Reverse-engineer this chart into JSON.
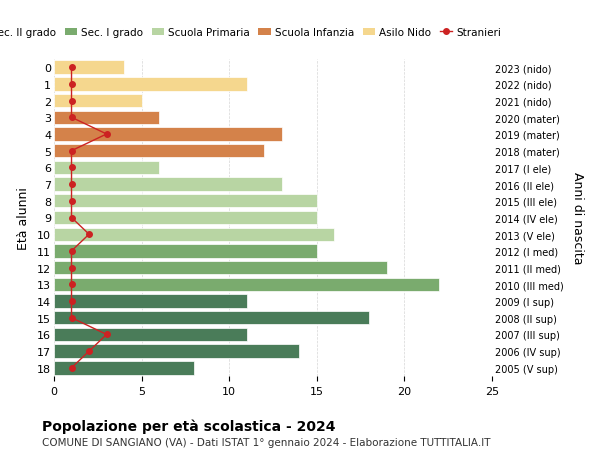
{
  "ages": [
    18,
    17,
    16,
    15,
    14,
    13,
    12,
    11,
    10,
    9,
    8,
    7,
    6,
    5,
    4,
    3,
    2,
    1,
    0
  ],
  "years": [
    "2005 (V sup)",
    "2006 (IV sup)",
    "2007 (III sup)",
    "2008 (II sup)",
    "2009 (I sup)",
    "2010 (III med)",
    "2011 (II med)",
    "2012 (I med)",
    "2013 (V ele)",
    "2014 (IV ele)",
    "2015 (III ele)",
    "2016 (II ele)",
    "2017 (I ele)",
    "2018 (mater)",
    "2019 (mater)",
    "2020 (mater)",
    "2021 (nido)",
    "2022 (nido)",
    "2023 (nido)"
  ],
  "values": [
    8,
    14,
    11,
    18,
    11,
    22,
    19,
    15,
    16,
    15,
    15,
    13,
    6,
    12,
    13,
    6,
    5,
    11,
    4
  ],
  "stranieri": [
    1,
    2,
    3,
    1,
    1,
    1,
    1,
    1,
    2,
    1,
    1,
    1,
    1,
    1,
    3,
    1,
    1,
    1,
    1
  ],
  "colors": {
    "sec2": "#4a7c59",
    "sec1": "#7aab6e",
    "primaria": "#b8d5a3",
    "infanzia": "#d4824a",
    "nido": "#f5d78e",
    "stranieri": "#cc2222"
  },
  "bar_colors": [
    "#4a7c59",
    "#4a7c59",
    "#4a7c59",
    "#4a7c59",
    "#4a7c59",
    "#7aab6e",
    "#7aab6e",
    "#7aab6e",
    "#b8d5a3",
    "#b8d5a3",
    "#b8d5a3",
    "#b8d5a3",
    "#b8d5a3",
    "#d4824a",
    "#d4824a",
    "#d4824a",
    "#f5d78e",
    "#f5d78e",
    "#f5d78e"
  ],
  "title": "Popolazione per età scolastica - 2024",
  "subtitle": "COMUNE DI SANGIANO (VA) - Dati ISTAT 1° gennaio 2024 - Elaborazione TUTTITALIA.IT",
  "ylabel": "Età alunni",
  "ylabel2": "Anni di nascita",
  "xlim": [
    0,
    25
  ],
  "legend_labels": [
    "Sec. II grado",
    "Sec. I grado",
    "Scuola Primaria",
    "Scuola Infanzia",
    "Asilo Nido",
    "Stranieri"
  ],
  "legend_colors": [
    "#4a7c59",
    "#7aab6e",
    "#b8d5a3",
    "#d4824a",
    "#f5d78e",
    "#cc2222"
  ],
  "bg_color": "#ffffff",
  "grid_color": "#cccccc"
}
